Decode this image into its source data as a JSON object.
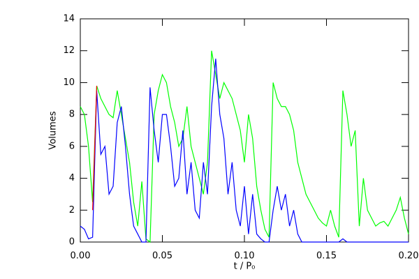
{
  "chart_data": {
    "type": "line",
    "xlabel": "t / P₀",
    "ylabel": "Volumes",
    "xlim": [
      0,
      0.2
    ],
    "ylim": [
      0,
      14
    ],
    "xticks": [
      {
        "value": 0,
        "label": "0.00"
      },
      0.05,
      {
        "value": 0.1,
        "label": "0.10"
      },
      0.15,
      {
        "value": 0.2,
        "label": "0.20"
      }
    ],
    "yticks": [
      0,
      2,
      4,
      6,
      8,
      10,
      12,
      14
    ],
    "x": [
      0,
      0.0025,
      0.005,
      0.0075,
      0.01,
      0.0125,
      0.015,
      0.0175,
      0.02,
      0.0225,
      0.025,
      0.0275,
      0.03,
      0.0325,
      0.035,
      0.0375,
      0.04,
      0.0425,
      0.045,
      0.0475,
      0.05,
      0.0525,
      0.055,
      0.0575,
      0.06,
      0.0625,
      0.065,
      0.0675,
      0.07,
      0.0725,
      0.075,
      0.0775,
      0.08,
      0.0825,
      0.085,
      0.0875,
      0.09,
      0.0925,
      0.095,
      0.0975,
      0.1,
      0.1025,
      0.105,
      0.1075,
      0.11,
      0.1125,
      0.115,
      0.1175,
      0.12,
      0.1225,
      0.125,
      0.1275,
      0.13,
      0.1325,
      0.135,
      0.1375,
      0.14,
      0.1425,
      0.145,
      0.1475,
      0.15,
      0.1525,
      0.155,
      0.1575,
      0.16,
      0.1625,
      0.165,
      0.1675,
      0.17,
      0.1725,
      0.175,
      0.1775,
      0.18,
      0.1825,
      0.185,
      0.1875,
      0.19,
      0.1925,
      0.195,
      0.1975,
      0.2
    ],
    "series": [
      {
        "color": "#00ff00",
        "values": [
          8.5,
          8.0,
          6.0,
          2.5,
          9.8,
          9.0,
          8.5,
          8.0,
          7.8,
          9.5,
          8.0,
          6.5,
          5.0,
          2.5,
          1.0,
          3.8,
          0.2,
          0,
          8.0,
          9.5,
          10.5,
          10.0,
          8.5,
          7.5,
          6.0,
          6.5,
          8.5,
          6.0,
          5.0,
          4.0,
          3.0,
          5.0,
          12.0,
          10.5,
          9.0,
          10.0,
          9.5,
          9.0,
          8.0,
          7.0,
          5.0,
          8.0,
          6.5,
          3.5,
          2.0,
          0.8,
          0.3,
          10.0,
          9.0,
          8.5,
          8.5,
          8.0,
          7.0,
          5.0,
          4.0,
          3.0,
          2.5,
          2.0,
          1.5,
          1.2,
          1.0,
          2.0,
          1.0,
          0.3,
          9.5,
          8.0,
          6.0,
          7.0,
          1.0,
          4.0,
          2.0,
          1.5,
          1.0,
          1.2,
          1.3,
          1.0,
          1.5,
          2.0,
          2.8,
          1.5,
          0.5
        ]
      },
      {
        "color": "#0000ff",
        "values": [
          1.0,
          0.8,
          0.2,
          0.3,
          9.5,
          5.5,
          6.0,
          3.0,
          3.5,
          7.5,
          8.5,
          6.0,
          3.0,
          1.0,
          0.5,
          0,
          0,
          9.7,
          7.0,
          5.0,
          8.0,
          8.0,
          6.0,
          3.5,
          4.0,
          7.0,
          3.0,
          5.0,
          2.0,
          1.5,
          5.0,
          3.0,
          8.5,
          11.5,
          8.0,
          6.5,
          3.0,
          5.0,
          2.0,
          1.0,
          3.5,
          0.5,
          3.0,
          0.5,
          0.2,
          0,
          0,
          2.0,
          3.5,
          2.0,
          3.0,
          1.0,
          2.0,
          0.5,
          0,
          0,
          0,
          0,
          0,
          0,
          0,
          0,
          0,
          0,
          0.2,
          0,
          0,
          0,
          0,
          0,
          0,
          0,
          0,
          0,
          0,
          0,
          0,
          0,
          0,
          0,
          0
        ]
      },
      {
        "color": "#ff0000",
        "values": [
          null,
          null,
          null,
          2.0,
          9.8,
          null,
          null,
          null,
          null,
          null,
          null,
          null,
          null,
          null,
          null,
          null,
          null,
          null,
          null,
          null,
          null,
          null,
          null,
          null,
          null,
          null,
          null,
          null,
          null,
          null,
          null,
          null,
          null,
          null,
          null,
          null,
          null,
          null,
          null,
          null,
          null,
          null,
          null,
          null,
          null,
          null,
          null,
          null,
          null,
          null,
          null,
          null,
          null,
          null,
          null,
          null,
          null,
          null,
          null,
          null,
          null,
          null,
          null,
          null,
          null,
          null,
          null,
          null,
          null,
          null,
          null,
          null,
          null,
          null,
          null,
          null,
          null,
          null,
          null,
          null,
          null
        ]
      }
    ]
  }
}
